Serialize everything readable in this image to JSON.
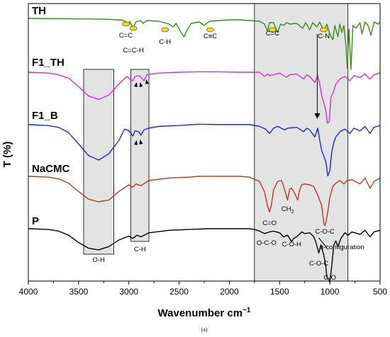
{
  "chart_data": {
    "type": "line",
    "caption": "(a)",
    "xlabel": "Wavenumber cm",
    "xlabel_sup": "−1",
    "ylabel": "T (%)",
    "xlim": [
      4000,
      500
    ],
    "x_ticks": [
      4000,
      3500,
      3000,
      2500,
      2000,
      1500,
      1000,
      500
    ],
    "series": [
      {
        "name": "TH",
        "color": "#3a8a1a",
        "points": [
          [
            4000,
            0
          ],
          [
            3700,
            -0.3
          ],
          [
            3400,
            -0.8
          ],
          [
            3200,
            -1.3
          ],
          [
            3060,
            -2.5
          ],
          [
            3020,
            -5.5
          ],
          [
            3000,
            -9
          ],
          [
            2990,
            -4
          ],
          [
            2960,
            -14
          ],
          [
            2930,
            -5
          ],
          [
            2880,
            -3
          ],
          [
            2860,
            -7
          ],
          [
            2820,
            -3
          ],
          [
            2700,
            -4
          ],
          [
            2600,
            -8
          ],
          [
            2560,
            -12
          ],
          [
            2530,
            -7
          ],
          [
            2480,
            -20
          ],
          [
            2450,
            -26
          ],
          [
            2420,
            -16
          ],
          [
            2380,
            -7
          ],
          [
            2300,
            -5
          ],
          [
            2250,
            -10
          ],
          [
            2200,
            -4
          ],
          [
            2100,
            -3
          ],
          [
            2000,
            -2
          ],
          [
            1900,
            -2
          ],
          [
            1800,
            -3
          ],
          [
            1700,
            -4
          ],
          [
            1650,
            -8
          ],
          [
            1620,
            -18
          ],
          [
            1600,
            -6
          ],
          [
            1560,
            -6
          ],
          [
            1520,
            -20
          ],
          [
            1490,
            -8
          ],
          [
            1460,
            -10
          ],
          [
            1430,
            -6
          ],
          [
            1400,
            -8
          ],
          [
            1330,
            -7
          ],
          [
            1270,
            -14
          ],
          [
            1240,
            -6
          ],
          [
            1200,
            -16
          ],
          [
            1170,
            -6
          ],
          [
            1130,
            -12
          ],
          [
            1100,
            -5
          ],
          [
            1060,
            -18
          ],
          [
            1030,
            -8
          ],
          [
            1000,
            -22
          ],
          [
            970,
            -30
          ],
          [
            950,
            -10
          ],
          [
            920,
            -26
          ],
          [
            900,
            -8
          ],
          [
            880,
            -20
          ],
          [
            860,
            -10
          ],
          [
            840,
            -38
          ],
          [
            825,
            -70
          ],
          [
            810,
            -15
          ],
          [
            790,
            -72
          ],
          [
            770,
            -10
          ],
          [
            740,
            -14
          ],
          [
            700,
            -6
          ],
          [
            680,
            -22
          ],
          [
            650,
            -5
          ],
          [
            620,
            -10
          ],
          [
            590,
            -24
          ],
          [
            560,
            -5
          ],
          [
            520,
            -8
          ],
          [
            500,
            -5
          ]
        ]
      },
      {
        "name": "F1_TH",
        "color": "#cc33cc",
        "points": [
          [
            4000,
            0
          ],
          [
            3800,
            -1
          ],
          [
            3700,
            -3
          ],
          [
            3600,
            -7
          ],
          [
            3500,
            -17
          ],
          [
            3400,
            -28
          ],
          [
            3300,
            -32
          ],
          [
            3200,
            -27
          ],
          [
            3100,
            -14
          ],
          [
            3020,
            -5
          ],
          [
            2990,
            -8
          ],
          [
            2960,
            -10
          ],
          [
            2940,
            -5
          ],
          [
            2900,
            -4
          ],
          [
            2880,
            -6
          ],
          [
            2850,
            -10
          ],
          [
            2820,
            -3
          ],
          [
            2700,
            -1
          ],
          [
            2500,
            0
          ],
          [
            2300,
            0.5
          ],
          [
            2100,
            0.5
          ],
          [
            1900,
            0
          ],
          [
            1800,
            0
          ],
          [
            1700,
            0
          ],
          [
            1650,
            -5
          ],
          [
            1620,
            -2
          ],
          [
            1600,
            -4
          ],
          [
            1560,
            -3
          ],
          [
            1500,
            -1
          ],
          [
            1430,
            -6
          ],
          [
            1400,
            -3
          ],
          [
            1330,
            -2
          ],
          [
            1260,
            -8
          ],
          [
            1230,
            -3
          ],
          [
            1200,
            -5
          ],
          [
            1150,
            -12
          ],
          [
            1120,
            -4
          ],
          [
            1100,
            -14
          ],
          [
            1080,
            -28
          ],
          [
            1060,
            -36
          ],
          [
            1040,
            -45
          ],
          [
            1025,
            -60
          ],
          [
            1005,
            -58
          ],
          [
            990,
            -30
          ],
          [
            960,
            -22
          ],
          [
            940,
            -14
          ],
          [
            900,
            -8
          ],
          [
            850,
            -5
          ],
          [
            800,
            -10
          ],
          [
            760,
            -4
          ],
          [
            700,
            -6
          ],
          [
            650,
            -2
          ],
          [
            600,
            -8
          ],
          [
            560,
            -3
          ],
          [
            500,
            -1
          ]
        ]
      },
      {
        "name": "F1_B",
        "color": "#1c2ccc",
        "points": [
          [
            4000,
            0
          ],
          [
            3800,
            -1
          ],
          [
            3700,
            -3
          ],
          [
            3600,
            -9
          ],
          [
            3500,
            -22
          ],
          [
            3400,
            -35
          ],
          [
            3300,
            -40
          ],
          [
            3200,
            -33
          ],
          [
            3100,
            -18
          ],
          [
            3040,
            -5
          ],
          [
            3000,
            -7
          ],
          [
            2960,
            -13
          ],
          [
            2940,
            -7
          ],
          [
            2900,
            -8
          ],
          [
            2880,
            -12
          ],
          [
            2850,
            -6
          ],
          [
            2800,
            -4
          ],
          [
            2700,
            -2
          ],
          [
            2500,
            -1
          ],
          [
            2300,
            0.5
          ],
          [
            2100,
            0
          ],
          [
            1900,
            0
          ],
          [
            1800,
            0
          ],
          [
            1700,
            -2
          ],
          [
            1640,
            -5
          ],
          [
            1600,
            -10
          ],
          [
            1560,
            -4
          ],
          [
            1520,
            -2
          ],
          [
            1450,
            -6
          ],
          [
            1420,
            -4
          ],
          [
            1330,
            -3
          ],
          [
            1260,
            -8
          ],
          [
            1230,
            -4
          ],
          [
            1200,
            -6
          ],
          [
            1150,
            -14
          ],
          [
            1120,
            -4
          ],
          [
            1100,
            -18
          ],
          [
            1080,
            -30
          ],
          [
            1060,
            -35
          ],
          [
            1040,
            -42
          ],
          [
            1020,
            -58
          ],
          [
            1000,
            -52
          ],
          [
            980,
            -30
          ],
          [
            960,
            -20
          ],
          [
            940,
            -14
          ],
          [
            900,
            -8
          ],
          [
            850,
            -5
          ],
          [
            800,
            -10
          ],
          [
            760,
            -4
          ],
          [
            700,
            -7
          ],
          [
            650,
            -2
          ],
          [
            600,
            -10
          ],
          [
            560,
            -3
          ],
          [
            500,
            -1
          ]
        ]
      },
      {
        "name": "NaCMC",
        "color": "#b23a2a",
        "points": [
          [
            4000,
            0
          ],
          [
            3800,
            -1
          ],
          [
            3700,
            -3
          ],
          [
            3600,
            -8
          ],
          [
            3500,
            -18
          ],
          [
            3400,
            -27
          ],
          [
            3300,
            -30
          ],
          [
            3200,
            -28
          ],
          [
            3100,
            -18
          ],
          [
            3000,
            -10
          ],
          [
            2960,
            -13
          ],
          [
            2930,
            -9
          ],
          [
            2880,
            -11
          ],
          [
            2800,
            -5
          ],
          [
            2600,
            -2
          ],
          [
            2400,
            -1
          ],
          [
            2300,
            0
          ],
          [
            2100,
            0
          ],
          [
            1900,
            0
          ],
          [
            1800,
            -1
          ],
          [
            1700,
            -6
          ],
          [
            1650,
            -18
          ],
          [
            1620,
            -35
          ],
          [
            1600,
            -42
          ],
          [
            1580,
            -33
          ],
          [
            1560,
            -16
          ],
          [
            1520,
            -6
          ],
          [
            1480,
            -5
          ],
          [
            1460,
            -12
          ],
          [
            1420,
            -28
          ],
          [
            1400,
            -15
          ],
          [
            1380,
            -14
          ],
          [
            1350,
            -20
          ],
          [
            1320,
            -28
          ],
          [
            1300,
            -16
          ],
          [
            1280,
            -10
          ],
          [
            1250,
            -9
          ],
          [
            1200,
            -10
          ],
          [
            1160,
            -12
          ],
          [
            1120,
            -22
          ],
          [
            1080,
            -35
          ],
          [
            1060,
            -55
          ],
          [
            1050,
            -58
          ],
          [
            1040,
            -55
          ],
          [
            1020,
            -42
          ],
          [
            1000,
            -25
          ],
          [
            970,
            -12
          ],
          [
            940,
            -8
          ],
          [
            900,
            -5
          ],
          [
            860,
            -9
          ],
          [
            830,
            -5
          ],
          [
            780,
            -4
          ],
          [
            700,
            -9
          ],
          [
            650,
            -2
          ],
          [
            600,
            -14
          ],
          [
            560,
            -6
          ],
          [
            500,
            -2
          ]
        ]
      },
      {
        "name": "P",
        "color": "#000000",
        "points": [
          [
            4000,
            0
          ],
          [
            3800,
            -1
          ],
          [
            3700,
            -3
          ],
          [
            3600,
            -8
          ],
          [
            3500,
            -17
          ],
          [
            3400,
            -24
          ],
          [
            3300,
            -26
          ],
          [
            3200,
            -22
          ],
          [
            3100,
            -14
          ],
          [
            3000,
            -9
          ],
          [
            2960,
            -12
          ],
          [
            2920,
            -8
          ],
          [
            2880,
            -10
          ],
          [
            2800,
            -5
          ],
          [
            2600,
            -2
          ],
          [
            2400,
            -1
          ],
          [
            2200,
            0
          ],
          [
            2000,
            0
          ],
          [
            1900,
            0
          ],
          [
            1800,
            0
          ],
          [
            1750,
            -1
          ],
          [
            1700,
            -3
          ],
          [
            1650,
            -6
          ],
          [
            1600,
            -4
          ],
          [
            1560,
            -3
          ],
          [
            1500,
            -5
          ],
          [
            1460,
            -10
          ],
          [
            1420,
            -8
          ],
          [
            1380,
            -16
          ],
          [
            1360,
            -12
          ],
          [
            1330,
            -10
          ],
          [
            1280,
            -4
          ],
          [
            1250,
            -6
          ],
          [
            1200,
            -5
          ],
          [
            1160,
            -10
          ],
          [
            1140,
            -16
          ],
          [
            1110,
            -30
          ],
          [
            1090,
            -20
          ],
          [
            1060,
            -32
          ],
          [
            1040,
            -46
          ],
          [
            1030,
            -60
          ],
          [
            1010,
            -62
          ],
          [
            1000,
            -66
          ],
          [
            985,
            -50
          ],
          [
            960,
            -20
          ],
          [
            940,
            -15
          ],
          [
            920,
            -22
          ],
          [
            890,
            -12
          ],
          [
            850,
            -5
          ],
          [
            820,
            -8
          ],
          [
            780,
            -4
          ],
          [
            700,
            -7
          ],
          [
            650,
            -2
          ],
          [
            600,
            -10
          ],
          [
            560,
            -4
          ],
          [
            500,
            -2
          ]
        ]
      }
    ],
    "highlight_regions": [
      {
        "x": [
          3450,
          3150
        ]
      },
      {
        "x": [
          2980,
          2800
        ]
      },
      {
        "x": [
          1750,
          820
        ]
      }
    ],
    "annotations": [
      {
        "text": "C=C",
        "x": 3030,
        "series": "TH"
      },
      {
        "text": "C=C-H",
        "x": 2955,
        "series": "TH"
      },
      {
        "text": "C-H",
        "x": 2640,
        "series": "TH"
      },
      {
        "text": "C≡C",
        "x": 2190,
        "series": "TH"
      },
      {
        "text": "C=C",
        "x": 1570,
        "series": "TH"
      },
      {
        "text": "C-N",
        "x": 1060,
        "series": "TH"
      },
      {
        "text": "O-H",
        "x": 3300,
        "series": "P"
      },
      {
        "text": "C-H",
        "x": 2890,
        "series": "P"
      },
      {
        "text": "CH",
        "sub": "2",
        "x": 1420,
        "series": "NaCMC"
      },
      {
        "text": "C=O",
        "x": 1600,
        "series": "P"
      },
      {
        "text": "O-C-O",
        "x": 1630,
        "series": "P"
      },
      {
        "text": "C-O-H",
        "x": 1380,
        "series": "P"
      },
      {
        "text": "C-O-C",
        "x": 1050,
        "series": "P"
      },
      {
        "text": "α-configuration",
        "x": 880,
        "series": "P"
      },
      {
        "text": "C-O-C",
        "x": 1110,
        "series": "P"
      },
      {
        "text": "C-O",
        "x": 1000,
        "series": "P"
      }
    ],
    "grid": false,
    "legend": "none"
  }
}
